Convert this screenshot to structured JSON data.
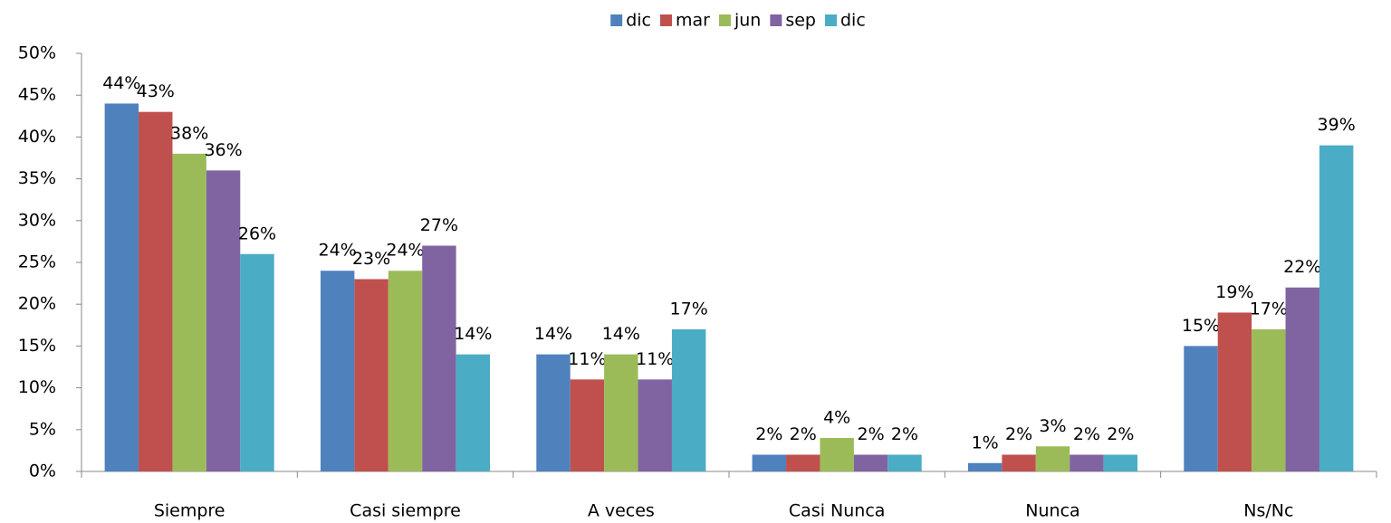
{
  "chart_data": {
    "type": "bar",
    "categories": [
      "Siempre",
      "Casi siempre",
      "A veces",
      "Casi Nunca",
      "Nunca",
      "Ns/Nc"
    ],
    "series": [
      {
        "name": "dic",
        "color": "#4f81bd",
        "values": [
          44,
          24,
          14,
          2,
          1,
          15
        ],
        "value_labels": [
          "44%",
          "24%",
          "14%",
          "2%",
          "1%",
          "15%"
        ]
      },
      {
        "name": "mar",
        "color": "#c0504d",
        "values": [
          43,
          23,
          11,
          2,
          2,
          19
        ],
        "value_labels": [
          "43%",
          "23%",
          "11%",
          "2%",
          "2%",
          "19%"
        ]
      },
      {
        "name": "jun",
        "color": "#9bbb59",
        "values": [
          38,
          24,
          14,
          4,
          3,
          17
        ],
        "value_labels": [
          "38%",
          "24%",
          "14%",
          "4%",
          "3%",
          "17%"
        ]
      },
      {
        "name": "sep",
        "color": "#8064a2",
        "values": [
          36,
          27,
          11,
          2,
          2,
          22
        ],
        "value_labels": [
          "36%",
          "27%",
          "11%",
          "2%",
          "2%",
          "22%"
        ]
      },
      {
        "name": "dic",
        "color": "#4bacc6",
        "values": [
          26,
          14,
          17,
          2,
          2,
          39
        ],
        "value_labels": [
          "26%",
          "14%",
          "17%",
          "2%",
          "2%",
          "39%"
        ]
      }
    ],
    "ylim": [
      0,
      50
    ],
    "yticks": [
      {
        "value": 0,
        "label": "0%"
      },
      {
        "value": 5,
        "label": "5%"
      },
      {
        "value": 10,
        "label": "10%"
      },
      {
        "value": 15,
        "label": "15%"
      },
      {
        "value": 20,
        "label": "20%"
      },
      {
        "value": 25,
        "label": "25%"
      },
      {
        "value": 30,
        "label": "30%"
      },
      {
        "value": 35,
        "label": "35%"
      },
      {
        "value": 40,
        "label": "40%"
      },
      {
        "value": 45,
        "label": "45%"
      },
      {
        "value": 50,
        "label": "50%"
      }
    ],
    "legend": "top",
    "grid": false
  }
}
